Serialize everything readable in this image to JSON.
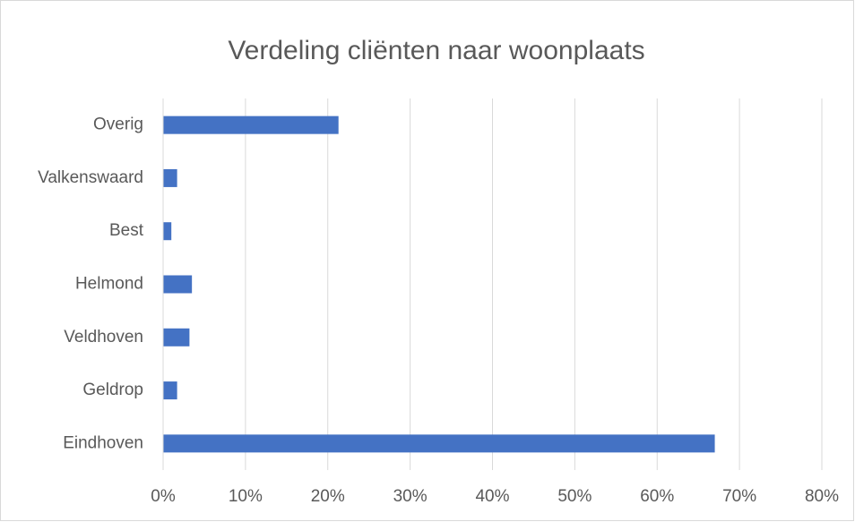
{
  "chart_data": {
    "type": "bar",
    "orientation": "horizontal",
    "title": "Verdeling cliënten naar woonplaats",
    "categories": [
      "Eindhoven",
      "Geldrop",
      "Veldhoven",
      "Helmond",
      "Best",
      "Valkenswaard",
      "Overig"
    ],
    "values": [
      67,
      1.7,
      3.2,
      3.5,
      1.0,
      1.7,
      21.3
    ],
    "color": "#4472c4",
    "xlim": [
      0,
      80
    ],
    "xticks": [
      {
        "value": 0,
        "label": "0%"
      },
      {
        "value": 10,
        "label": "10%"
      },
      {
        "value": 20,
        "label": "20%"
      },
      {
        "value": 30,
        "label": "30%"
      },
      {
        "value": 40,
        "label": "40%"
      },
      {
        "value": 50,
        "label": "50%"
      },
      {
        "value": 60,
        "label": "60%"
      },
      {
        "value": 70,
        "label": "70%"
      },
      {
        "value": 80,
        "label": "80%"
      }
    ],
    "grid": true
  }
}
